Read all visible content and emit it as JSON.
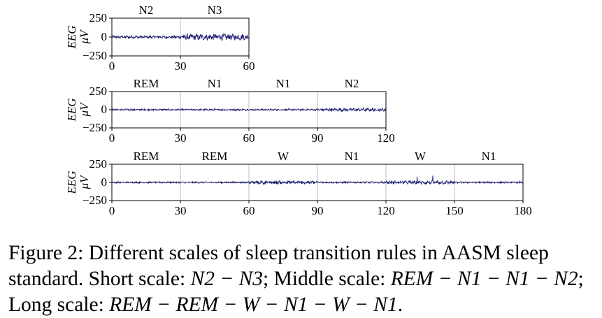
{
  "colors": {
    "signal": "#1a1a6e",
    "grid": "#bdbdbd",
    "axis": "#000000"
  },
  "chart_data": [
    {
      "type": "line",
      "name": "short-scale",
      "ylabel_line1": "EEG",
      "ylabel_line2": "μV",
      "xlim": [
        0,
        60
      ],
      "ylim": [
        -250,
        250
      ],
      "xticks": [
        0,
        30,
        60
      ],
      "yticks": [
        250,
        0,
        -250
      ],
      "ytick_labels": [
        "250",
        "0",
        "−250"
      ],
      "grid": "vertical",
      "epoch_length": 30,
      "stages": [
        "N2",
        "N3"
      ],
      "signal": {
        "noise_amplitude": [
          15,
          35
        ],
        "spike_amplitude": [
          0,
          0
        ]
      }
    },
    {
      "type": "line",
      "name": "middle-scale",
      "ylabel_line1": "EEG",
      "ylabel_line2": "μV",
      "xlim": [
        0,
        120
      ],
      "ylim": [
        -250,
        250
      ],
      "xticks": [
        0,
        30,
        60,
        90,
        120
      ],
      "yticks": [
        250,
        0,
        -250
      ],
      "ytick_labels": [
        "250",
        "0",
        "−250"
      ],
      "grid": "vertical",
      "epoch_length": 30,
      "stages": [
        "REM",
        "N1",
        "N1",
        "N2"
      ],
      "signal": {
        "noise_amplitude": [
          10,
          10,
          10,
          18
        ],
        "spike_amplitude": [
          0,
          0,
          0,
          0
        ]
      }
    },
    {
      "type": "line",
      "name": "long-scale",
      "ylabel_line1": "EEG",
      "ylabel_line2": "μV",
      "xlim": [
        0,
        180
      ],
      "ylim": [
        -250,
        250
      ],
      "xticks": [
        0,
        30,
        60,
        90,
        120,
        150,
        180
      ],
      "yticks": [
        250,
        0,
        -250
      ],
      "ytick_labels": [
        "250",
        "0",
        "−250"
      ],
      "grid": "vertical",
      "epoch_length": 30,
      "stages": [
        "REM",
        "REM",
        "W",
        "N1",
        "W",
        "N1"
      ],
      "signal": {
        "noise_amplitude": [
          9,
          9,
          20,
          10,
          20,
          10
        ],
        "spike_amplitude": [
          0,
          0,
          60,
          0,
          60,
          0
        ]
      }
    }
  ],
  "caption": {
    "lead": "Figure 2:  Different scales of sleep transition rules in AASM sleep standard.  Short scale: ",
    "short": "N2 − N3",
    "mid_label": "; Middle scale: ",
    "middle": "REM − N1 − N1 − N2",
    "long_label": "; Long scale: ",
    "long": "REM − REM − W − N1 − W − N1",
    "end": "."
  }
}
